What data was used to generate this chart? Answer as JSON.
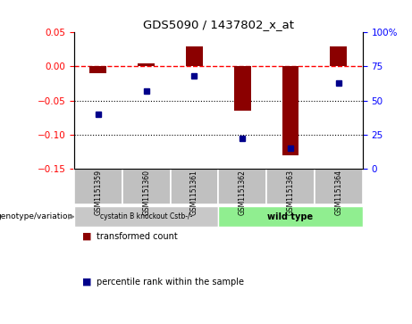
{
  "title": "GDS5090 / 1437802_x_at",
  "samples": [
    "GSM1151359",
    "GSM1151360",
    "GSM1151361",
    "GSM1151362",
    "GSM1151363",
    "GSM1151364"
  ],
  "transformed_count": [
    -0.01,
    0.005,
    0.03,
    -0.065,
    -0.13,
    0.03
  ],
  "percentile_rank": [
    40,
    57,
    68,
    22,
    15,
    63
  ],
  "group_colors": [
    "#c8c8c8",
    "#90EE90"
  ],
  "sample_bg_color": "#c0c0c0",
  "ylim_left": [
    -0.15,
    0.05
  ],
  "ylim_right": [
    0,
    100
  ],
  "yticks_left": [
    -0.15,
    -0.1,
    -0.05,
    0.0,
    0.05
  ],
  "yticks_right": [
    0,
    25,
    50,
    75,
    100
  ],
  "bar_color": "#8B0000",
  "dot_color": "#00008B",
  "dotted_lines": [
    -0.05,
    -0.1
  ],
  "bar_width": 0.35,
  "genotype_label": "genotype/variation",
  "group1_label": "cystatin B knockout Cstb-/-",
  "group2_label": "wild type",
  "legend1": "transformed count",
  "legend2": "percentile rank within the sample",
  "n_group1": 3,
  "n_group2": 3
}
